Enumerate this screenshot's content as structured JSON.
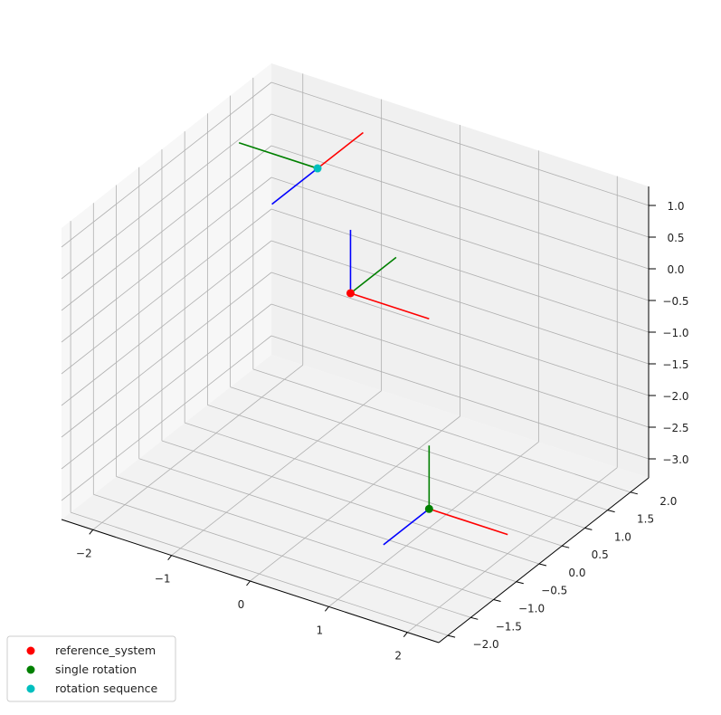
{
  "chart_data": {
    "type": "scatter",
    "projection": "3d",
    "title": "",
    "xlabel": "",
    "ylabel": "",
    "zlabel": "",
    "xlim": [
      -2.4,
      2.4
    ],
    "ylim": [
      -2.2,
      2.4
    ],
    "zlim": [
      -3.3,
      1.3
    ],
    "xticks": [
      -2,
      -1,
      0,
      1,
      2
    ],
    "yticks": [
      -2.0,
      -1.5,
      -1.0,
      -0.5,
      0.0,
      0.5,
      1.0,
      1.5,
      2.0
    ],
    "zticks": [
      -3.0,
      -2.5,
      -2.0,
      -1.5,
      -1.0,
      -0.5,
      0.0,
      0.5,
      1.0
    ],
    "xtick_labels": [
      "−2",
      "−1",
      "0",
      "1",
      "2"
    ],
    "ytick_labels": [
      "−2.0",
      "−1.5",
      "−1.0",
      "−0.5",
      "0.0",
      "0.5",
      "1.0",
      "1.5",
      "2.0"
    ],
    "ztick_labels": [
      "−3.0",
      "−2.5",
      "−2.0",
      "−1.5",
      "−1.0",
      "−0.5",
      "0.0",
      "0.5",
      "1.0"
    ],
    "grid": true,
    "legend_position": "lower-left",
    "series": [
      {
        "name": "reference_system",
        "color": "#ff0000",
        "origin": [
          0,
          0,
          0
        ],
        "axes": {
          "x": [
            1,
            0,
            0
          ],
          "y": [
            0,
            1,
            0
          ],
          "z": [
            0,
            0,
            1
          ]
        }
      },
      {
        "name": "single rotation",
        "color": "#008000",
        "origin": [
          1,
          0,
          -3
        ],
        "axes": {
          "x": [
            1,
            0,
            0
          ],
          "y": [
            0,
            0,
            1
          ],
          "z": [
            0,
            -1,
            0
          ]
        }
      },
      {
        "name": "rotation sequence",
        "color": "#00bfbf",
        "origin": [
          -1,
          1,
          1
        ],
        "axes": {
          "x": [
            0,
            1,
            0
          ],
          "y": [
            -1,
            0,
            0
          ],
          "z": [
            0,
            -1,
            0
          ]
        }
      }
    ],
    "axis_colors": {
      "x": "#ff0000",
      "y": "#008000",
      "z": "#0000ff"
    }
  }
}
